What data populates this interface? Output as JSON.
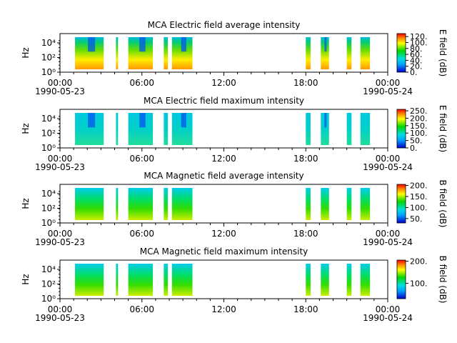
{
  "colors": {
    "low": "#0000cc",
    "mid_low": "#00e0e0",
    "mid": "#00d800",
    "mid_high": "#ffff00",
    "high": "#ff0000"
  },
  "chart_data": [
    {
      "type": "heatmap",
      "title": "MCA  Electric field average intensity",
      "ylabel": "Hz",
      "yticks": [
        "10⁰",
        "10²",
        "10⁴"
      ],
      "xticks": [
        "00:00",
        "06:00",
        "12:00",
        "18:00",
        "00:00"
      ],
      "xdates": [
        "1990-05-23",
        "1990-05-24"
      ],
      "colorbar_label": "E field (dB)",
      "colorbar_ticks": [
        "0.",
        "20.",
        "40.",
        "60.",
        "80.",
        "100.",
        "120."
      ],
      "colorbar_range": [
        0,
        130
      ],
      "level_avg": 70,
      "x_range_hours": [
        0,
        24
      ],
      "data_intervals_hours": [
        [
          1.1,
          3.2
        ],
        [
          4.1,
          4.25
        ],
        [
          5.0,
          6.8
        ],
        [
          7.6,
          7.9
        ],
        [
          8.2,
          9.7
        ],
        [
          18.0,
          18.35
        ],
        [
          19.1,
          19.7
        ],
        [
          21.0,
          21.35
        ],
        [
          22.0,
          22.7
        ]
      ]
    },
    {
      "type": "heatmap",
      "title": "MCA  Electric field maximum intensity",
      "ylabel": "Hz",
      "yticks": [
        "10⁰",
        "10²",
        "10⁴"
      ],
      "xticks": [
        "00:00",
        "06:00",
        "12:00",
        "18:00",
        "00:00"
      ],
      "xdates": [
        "1990-05-23",
        "1990-05-24"
      ],
      "colorbar_label": "E field (dB)",
      "colorbar_ticks": [
        "0.",
        "50.",
        "100.",
        "150.",
        "200.",
        "250."
      ],
      "colorbar_range": [
        0,
        260
      ],
      "level_avg": 100,
      "x_range_hours": [
        0,
        24
      ],
      "data_intervals_hours": [
        [
          1.1,
          3.2
        ],
        [
          4.1,
          4.25
        ],
        [
          5.0,
          6.8
        ],
        [
          7.6,
          7.9
        ],
        [
          8.2,
          9.7
        ],
        [
          18.0,
          18.35
        ],
        [
          19.1,
          19.7
        ],
        [
          21.0,
          21.35
        ],
        [
          22.0,
          22.7
        ]
      ]
    },
    {
      "type": "heatmap",
      "title": "MCA  Magnetic field average intensity",
      "ylabel": "Hz",
      "yticks": [
        "10⁰",
        "10²",
        "10⁴"
      ],
      "xticks": [
        "00:00",
        "06:00",
        "12:00",
        "18:00",
        "00:00"
      ],
      "xdates": [
        "1990-05-23",
        "1990-05-24"
      ],
      "colorbar_label": "B field (dB)",
      "colorbar_ticks": [
        "50.",
        "100.",
        "150.",
        "200."
      ],
      "colorbar_range": [
        30,
        205
      ],
      "level_avg": 120,
      "x_range_hours": [
        0,
        24
      ],
      "data_intervals_hours": [
        [
          1.1,
          3.2
        ],
        [
          4.1,
          4.25
        ],
        [
          5.0,
          6.8
        ],
        [
          7.6,
          7.9
        ],
        [
          8.2,
          9.7
        ],
        [
          18.0,
          18.35
        ],
        [
          19.1,
          19.7
        ],
        [
          21.0,
          21.35
        ],
        [
          22.0,
          22.7
        ]
      ]
    },
    {
      "type": "heatmap",
      "title": "MCA  Magnetic field maximum intensity",
      "ylabel": "Hz",
      "yticks": [
        "10⁰",
        "10²",
        "10⁴"
      ],
      "xticks": [
        "00:00",
        "06:00",
        "12:00",
        "18:00",
        "00:00"
      ],
      "xdates": [
        "1990-05-23",
        "1990-05-24"
      ],
      "colorbar_label": "B field (dB)",
      "colorbar_ticks": [
        "100.",
        "200."
      ],
      "colorbar_range": [
        30,
        205
      ],
      "level_avg": 125,
      "x_range_hours": [
        0,
        24
      ],
      "data_intervals_hours": [
        [
          1.1,
          3.2
        ],
        [
          4.1,
          4.25
        ],
        [
          5.0,
          6.8
        ],
        [
          7.6,
          7.9
        ],
        [
          8.2,
          9.7
        ],
        [
          18.0,
          18.35
        ],
        [
          19.1,
          19.7
        ],
        [
          21.0,
          21.35
        ],
        [
          22.0,
          22.7
        ]
      ]
    }
  ]
}
